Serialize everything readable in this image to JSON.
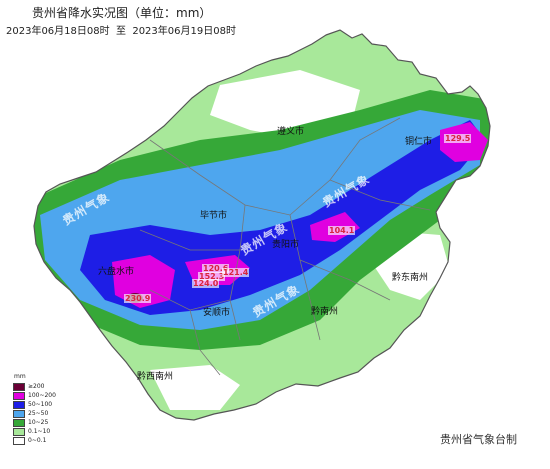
{
  "header": {
    "title": "贵州省降水实况图（单位：mm）",
    "period": "2023年06月18日08时  至  2023年06月19日08时"
  },
  "cities": [
    {
      "name": "遵义市"
    },
    {
      "name": "铜仁市"
    },
    {
      "name": "毕节市"
    },
    {
      "name": "贵阳市"
    },
    {
      "name": "六盘水市"
    },
    {
      "name": "安顺市"
    },
    {
      "name": "黔南州"
    },
    {
      "name": "黔东南州"
    },
    {
      "name": "黔西南州"
    }
  ],
  "max_values": [
    {
      "value": "129.5"
    },
    {
      "value": "104.1"
    },
    {
      "value": "120.6"
    },
    {
      "value": "152.3"
    },
    {
      "value": "121.4"
    },
    {
      "value": "124.0"
    },
    {
      "value": "230.9"
    }
  ],
  "watermarks": [
    "贵州气象",
    "贵州气象",
    "贵州气象",
    "贵州气象"
  ],
  "legend": {
    "unit": "mm",
    "items": [
      {
        "label": "≥200",
        "color": "#6a0036"
      },
      {
        "label": "100~200",
        "color": "#e000e0"
      },
      {
        "label": "50~100",
        "color": "#1e1ee6"
      },
      {
        "label": "25~50",
        "color": "#4ea6ee"
      },
      {
        "label": "10~25",
        "color": "#36a838"
      },
      {
        "label": "0.1~10",
        "color": "#a8e89a"
      },
      {
        "label": "0~0.1",
        "color": "#ffffff"
      }
    ]
  },
  "footer": {
    "agency": "贵州省气象台制"
  }
}
